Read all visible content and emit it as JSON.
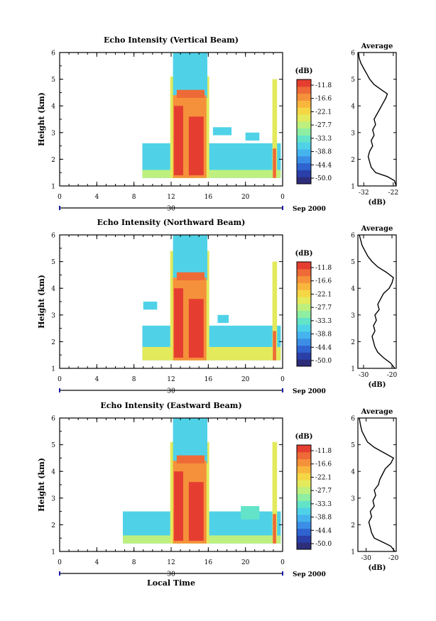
{
  "figure": {
    "xlabel": "Local Time",
    "date_label": "Sep 2000",
    "day_label": "30",
    "colorbar_unit": "(dB)",
    "avg_title": "Average",
    "avg_xlabel": "(dB)"
  },
  "colors": {
    "colormap": [
      "#2d2d7a",
      "#2a3fa8",
      "#2f63d0",
      "#3b8ee6",
      "#45b4ee",
      "#4fd2e8",
      "#63e4c9",
      "#8eeea1",
      "#bdf07e",
      "#e3ea5c",
      "#f5d645",
      "#f9b63d",
      "#f5913a",
      "#ee6a37",
      "#e53e31"
    ]
  },
  "chart_data": [
    {
      "type": "heatmap",
      "title": "Echo Intensity (Vertical Beam)",
      "ylabel": "Height (km)",
      "xlabel": "",
      "x_ticks": [
        "0",
        "4",
        "8",
        "12",
        "16",
        "20",
        "0"
      ],
      "xlim": [
        0,
        24
      ],
      "ylim": [
        1,
        6
      ],
      "y_ticks": [
        "1",
        "2",
        "3",
        "4",
        "5",
        "6"
      ],
      "colorbar_ticks": [
        "-11.8",
        "-16.6",
        "-22.1",
        "-27.7",
        "-33.3",
        "-38.8",
        "-44.4",
        "-50.0"
      ],
      "average": {
        "x_ticks": [
          "-32",
          "-22"
        ],
        "xlim": [
          -34,
          -21
        ],
        "profile": [
          [
            1.0,
            -21.0
          ],
          [
            1.2,
            -21.6
          ],
          [
            1.35,
            -24.0
          ],
          [
            1.5,
            -28.0
          ],
          [
            1.7,
            -29.5
          ],
          [
            1.9,
            -30.0
          ],
          [
            2.1,
            -30.5
          ],
          [
            2.3,
            -30.0
          ],
          [
            2.5,
            -29.0
          ],
          [
            2.7,
            -29.5
          ],
          [
            2.9,
            -28.5
          ],
          [
            3.1,
            -29.0
          ],
          [
            3.3,
            -28.0
          ],
          [
            3.5,
            -28.5
          ],
          [
            3.7,
            -27.5
          ],
          [
            3.9,
            -26.5
          ],
          [
            4.1,
            -25.5
          ],
          [
            4.3,
            -24.5
          ],
          [
            4.45,
            -24.0
          ],
          [
            4.6,
            -26.0
          ],
          [
            4.8,
            -28.5
          ],
          [
            5.0,
            -30.0
          ],
          [
            5.2,
            -31.0
          ],
          [
            5.4,
            -32.0
          ],
          [
            5.6,
            -33.0
          ],
          [
            5.8,
            -33.6
          ],
          [
            6.0,
            -33.8
          ]
        ]
      },
      "echo_regions": [
        {
          "t0": 8.9,
          "t1": 23.8,
          "h0": 1.3,
          "h1": 2.6,
          "level": 5
        },
        {
          "t0": 8.9,
          "t1": 23.8,
          "h0": 1.3,
          "h1": 1.6,
          "level": 8
        },
        {
          "t0": 11.9,
          "t1": 16.1,
          "h0": 1.3,
          "h1": 5.1,
          "level": 9
        },
        {
          "t0": 12.2,
          "t1": 15.9,
          "h0": 4.3,
          "h1": 6.0,
          "level": 5
        },
        {
          "t0": 12.2,
          "t1": 15.8,
          "h0": 1.3,
          "h1": 4.4,
          "level": 12
        },
        {
          "t0": 12.3,
          "t1": 13.3,
          "h0": 1.4,
          "h1": 4.0,
          "level": 14
        },
        {
          "t0": 13.9,
          "t1": 15.5,
          "h0": 1.4,
          "h1": 3.6,
          "level": 14
        },
        {
          "t0": 12.6,
          "t1": 15.6,
          "h0": 4.3,
          "h1": 4.6,
          "level": 13
        },
        {
          "t0": 22.9,
          "t1": 23.4,
          "h0": 1.3,
          "h1": 5.0,
          "level": 9
        },
        {
          "t0": 22.95,
          "t1": 23.3,
          "h0": 1.3,
          "h1": 2.4,
          "level": 13
        },
        {
          "t0": 16.5,
          "t1": 18.5,
          "h0": 2.9,
          "h1": 3.2,
          "level": 5
        },
        {
          "t0": 20.0,
          "t1": 21.5,
          "h0": 2.7,
          "h1": 3.0,
          "level": 5
        }
      ]
    },
    {
      "type": "heatmap",
      "title": "Echo Intensity (Northward Beam)",
      "ylabel": "Height (km)",
      "xlabel": "",
      "x_ticks": [
        "0",
        "4",
        "8",
        "12",
        "16",
        "20",
        "0"
      ],
      "xlim": [
        0,
        24
      ],
      "ylim": [
        1,
        6
      ],
      "y_ticks": [
        "1",
        "2",
        "3",
        "4",
        "5",
        "6"
      ],
      "colorbar_ticks": [
        "-11.8",
        "-16.6",
        "-22.1",
        "-27.7",
        "-33.3",
        "-38.8",
        "-44.4",
        "-50.0"
      ],
      "average": {
        "x_ticks": [
          "-30",
          "-20"
        ],
        "xlim": [
          -32,
          -18.5
        ],
        "profile": [
          [
            1.0,
            -19.0
          ],
          [
            1.2,
            -20.5
          ],
          [
            1.4,
            -23.0
          ],
          [
            1.6,
            -25.0
          ],
          [
            1.8,
            -26.0
          ],
          [
            2.0,
            -26.5
          ],
          [
            2.2,
            -27.0
          ],
          [
            2.4,
            -26.0
          ],
          [
            2.6,
            -26.5
          ],
          [
            2.8,
            -25.5
          ],
          [
            3.0,
            -26.0
          ],
          [
            3.2,
            -24.5
          ],
          [
            3.4,
            -25.0
          ],
          [
            3.6,
            -24.0
          ],
          [
            3.8,
            -23.0
          ],
          [
            4.0,
            -21.0
          ],
          [
            4.2,
            -20.0
          ],
          [
            4.4,
            -19.5
          ],
          [
            4.6,
            -22.0
          ],
          [
            4.8,
            -25.0
          ],
          [
            5.0,
            -27.0
          ],
          [
            5.2,
            -28.5
          ],
          [
            5.4,
            -29.5
          ],
          [
            5.6,
            -30.5
          ],
          [
            5.8,
            -31.0
          ],
          [
            6.0,
            -31.5
          ]
        ]
      },
      "echo_regions": [
        {
          "t0": 8.9,
          "t1": 23.8,
          "h0": 1.3,
          "h1": 2.6,
          "level": 5
        },
        {
          "t0": 8.9,
          "t1": 23.8,
          "h0": 1.3,
          "h1": 1.8,
          "level": 9
        },
        {
          "t0": 11.9,
          "t1": 16.1,
          "h0": 1.3,
          "h1": 5.4,
          "level": 9
        },
        {
          "t0": 12.2,
          "t1": 15.9,
          "h0": 4.3,
          "h1": 6.0,
          "level": 5
        },
        {
          "t0": 12.2,
          "t1": 15.8,
          "h0": 1.3,
          "h1": 4.4,
          "level": 12
        },
        {
          "t0": 12.3,
          "t1": 13.3,
          "h0": 1.4,
          "h1": 4.0,
          "level": 14
        },
        {
          "t0": 13.9,
          "t1": 15.5,
          "h0": 1.4,
          "h1": 3.6,
          "level": 14
        },
        {
          "t0": 12.6,
          "t1": 15.6,
          "h0": 4.3,
          "h1": 4.6,
          "level": 13
        },
        {
          "t0": 22.9,
          "t1": 23.4,
          "h0": 1.3,
          "h1": 5.0,
          "level": 9
        },
        {
          "t0": 22.95,
          "t1": 23.3,
          "h0": 1.3,
          "h1": 2.4,
          "level": 13
        },
        {
          "t0": 9.0,
          "t1": 10.5,
          "h0": 3.2,
          "h1": 3.5,
          "level": 5
        },
        {
          "t0": 17.0,
          "t1": 18.2,
          "h0": 2.7,
          "h1": 3.0,
          "level": 5
        }
      ]
    },
    {
      "type": "heatmap",
      "title": "Echo Intensity (Eastward Beam)",
      "ylabel": "Height (km)",
      "xlabel": "Local Time",
      "x_ticks": [
        "0",
        "4",
        "8",
        "12",
        "16",
        "20",
        "0"
      ],
      "xlim": [
        0,
        24
      ],
      "ylim": [
        1,
        6
      ],
      "y_ticks": [
        "1",
        "2",
        "3",
        "4",
        "5",
        "6"
      ],
      "colorbar_ticks": [
        "-11.8",
        "-16.6",
        "-22.1",
        "-27.7",
        "-33.3",
        "-38.8",
        "-44.4",
        "-50.0"
      ],
      "average": {
        "x_ticks": [
          "-30",
          "-20"
        ],
        "xlim": [
          -33,
          -19
        ],
        "profile": [
          [
            1.0,
            -19.5
          ],
          [
            1.2,
            -21.0
          ],
          [
            1.35,
            -24.0
          ],
          [
            1.5,
            -27.0
          ],
          [
            1.7,
            -28.0
          ],
          [
            1.9,
            -28.5
          ],
          [
            2.1,
            -29.0
          ],
          [
            2.3,
            -28.0
          ],
          [
            2.5,
            -28.5
          ],
          [
            2.7,
            -27.0
          ],
          [
            2.9,
            -27.5
          ],
          [
            3.1,
            -26.5
          ],
          [
            3.3,
            -27.0
          ],
          [
            3.5,
            -25.5
          ],
          [
            3.7,
            -25.0
          ],
          [
            3.9,
            -24.0
          ],
          [
            4.1,
            -23.0
          ],
          [
            4.3,
            -21.0
          ],
          [
            4.5,
            -20.0
          ],
          [
            4.7,
            -23.5
          ],
          [
            4.9,
            -27.0
          ],
          [
            5.1,
            -29.5
          ],
          [
            5.3,
            -30.5
          ],
          [
            5.5,
            -31.5
          ],
          [
            5.7,
            -32.0
          ],
          [
            6.0,
            -32.5
          ]
        ]
      },
      "echo_regions": [
        {
          "t0": 6.8,
          "t1": 23.8,
          "h0": 1.3,
          "h1": 2.5,
          "level": 5
        },
        {
          "t0": 6.8,
          "t1": 23.8,
          "h0": 1.3,
          "h1": 1.6,
          "level": 8
        },
        {
          "t0": 11.9,
          "t1": 16.1,
          "h0": 1.3,
          "h1": 5.1,
          "level": 9
        },
        {
          "t0": 12.2,
          "t1": 15.9,
          "h0": 4.3,
          "h1": 6.0,
          "level": 5
        },
        {
          "t0": 12.2,
          "t1": 15.8,
          "h0": 1.3,
          "h1": 4.4,
          "level": 12
        },
        {
          "t0": 12.3,
          "t1": 13.3,
          "h0": 1.4,
          "h1": 4.0,
          "level": 14
        },
        {
          "t0": 13.9,
          "t1": 15.5,
          "h0": 1.4,
          "h1": 3.6,
          "level": 14
        },
        {
          "t0": 12.6,
          "t1": 15.6,
          "h0": 4.3,
          "h1": 4.6,
          "level": 13
        },
        {
          "t0": 22.9,
          "t1": 23.4,
          "h0": 1.3,
          "h1": 5.1,
          "level": 9
        },
        {
          "t0": 22.95,
          "t1": 23.3,
          "h0": 1.3,
          "h1": 2.4,
          "level": 13
        },
        {
          "t0": 19.5,
          "t1": 21.5,
          "h0": 2.2,
          "h1": 2.7,
          "level": 6
        }
      ]
    }
  ]
}
